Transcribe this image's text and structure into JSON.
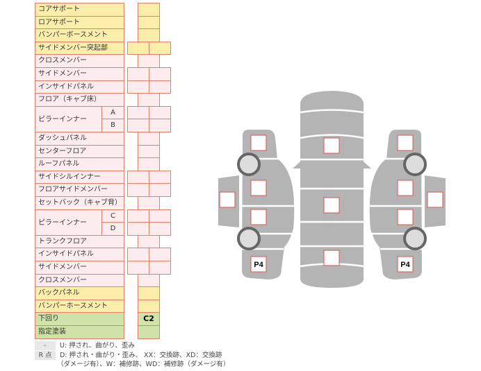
{
  "rows": [
    {
      "label": "コアサポート",
      "color": "y",
      "cells": 1
    },
    {
      "label": "ロアサポート",
      "color": "y",
      "cells": 1
    },
    {
      "label": "バンパーボースメント",
      "color": "y",
      "cells": 1
    },
    {
      "label": "サイドメンバー突起部",
      "color": "y",
      "cells": 2
    },
    {
      "label": "クロスメンバー",
      "color": "p",
      "cells": 1
    },
    {
      "label": "サイドメンバー",
      "color": "p",
      "cells": 2
    },
    {
      "label": "インサイドパネル",
      "color": "p",
      "cells": 2
    },
    {
      "label": "フロア（キャブ床）",
      "color": "p",
      "cells": 1
    },
    {
      "label": "ピラーインナー",
      "color": "p",
      "cells": 2,
      "sub": "A",
      "span": 2
    },
    {
      "label": "",
      "color": "p",
      "cells": 2,
      "sub": "B"
    },
    {
      "label": "ダッシュパネル",
      "color": "p",
      "cells": 1
    },
    {
      "label": "センターフロア",
      "color": "p",
      "cells": 1
    },
    {
      "label": "ルーフパネル",
      "color": "p",
      "cells": 1
    },
    {
      "label": "サイドシルインナー",
      "color": "p",
      "cells": 2
    },
    {
      "label": "フロアサイドメンバー",
      "color": "p",
      "cells": 2
    },
    {
      "label": "セットバック（キャブ背）",
      "color": "p",
      "cells": 1
    },
    {
      "label": "ピラーインナー",
      "color": "p",
      "cells": 2,
      "sub": "C",
      "span": 2
    },
    {
      "label": "",
      "color": "p",
      "cells": 2,
      "sub": "D"
    },
    {
      "label": "トランクフロア",
      "color": "p",
      "cells": 1
    },
    {
      "label": "インサイドパネル",
      "color": "p",
      "cells": 2
    },
    {
      "label": "サイドメンバー",
      "color": "p",
      "cells": 2
    },
    {
      "label": "クロスメンバー",
      "color": "p",
      "cells": 1
    },
    {
      "label": "バックパネル",
      "color": "y",
      "cells": 1
    },
    {
      "label": "バンパーホースメント",
      "color": "y",
      "cells": 1
    },
    {
      "label": "下回り",
      "color": "g",
      "cells": 1,
      "value": "C2"
    },
    {
      "label": "指定塗装",
      "color": "g",
      "cells": 1
    }
  ],
  "legend": [
    {
      "key": "-",
      "text": "U: 押され、曲がり、歪み"
    },
    {
      "key": "R 点",
      "text": "D: 押され・曲がり・歪み、 XX：交換跡、XD：交換跡"
    },
    {
      "key": "",
      "text": "（ダメージ有）、W：補修跡、WD：補修跡（ダメージ有）"
    }
  ],
  "diagram": {
    "left_rear_mark": "P4",
    "right_rear_mark": "P4"
  },
  "colors": {
    "yellow": "#fbedaa",
    "pink": "#fdeced",
    "green": "#cfe3a8",
    "border": "#e0806a",
    "body": "#b4b4b4"
  }
}
